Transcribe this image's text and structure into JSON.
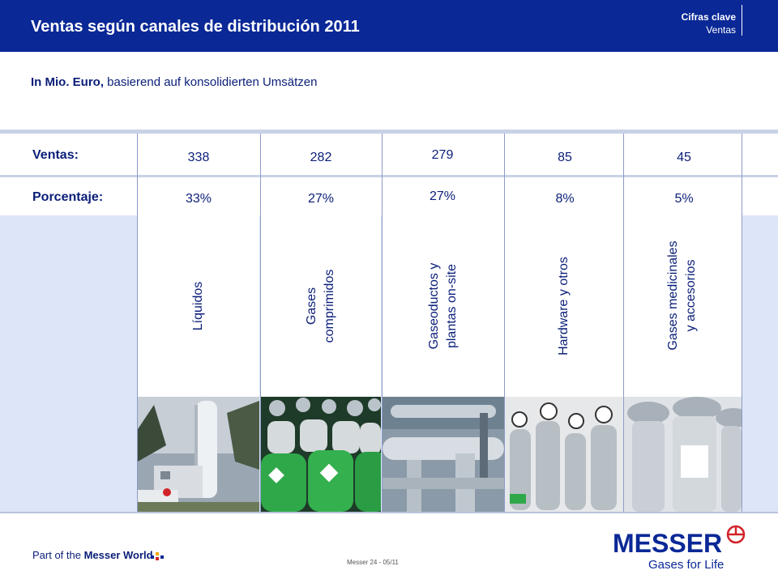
{
  "header": {
    "title": "Ventas según canales de distribución 2011",
    "section_title": "Cifras clave",
    "section_sub": "Ventas"
  },
  "subtitle": {
    "bold": "In Mio. Euro,",
    "rest": " basierend auf konsolidierten Umsätzen"
  },
  "rows": {
    "ventas_label": "Ventas:",
    "porcentaje_label": "Porcentaje:"
  },
  "channels": [
    {
      "name_lines": [
        "Líquidos"
      ],
      "sales": "338",
      "share": "33%"
    },
    {
      "name_lines": [
        "Gases",
        "comprimidos"
      ],
      "sales": "282",
      "share": "27%"
    },
    {
      "name_lines": [
        "Gaseoductos y",
        "plantas on-site"
      ],
      "sales": "279",
      "share": "27%"
    },
    {
      "name_lines": [
        "Hardware y otros"
      ],
      "sales": "85",
      "share": "8%"
    },
    {
      "name_lines": [
        "Gases medicinales",
        "y accesorios"
      ],
      "sales": "45",
      "share": "5%"
    }
  ],
  "footer": {
    "part_of_prefix": "Part of the ",
    "part_of_bold": "Messer World",
    "page_note": "Messer 24 - 05/11",
    "logo_word": "MESSER",
    "logo_tagline": "Gases for Life"
  },
  "colors": {
    "header_blue": "#0a2896",
    "text_navy": "#0a1e78",
    "panel_light_blue": "#dde6f8",
    "logo_red": "#d2232a"
  }
}
